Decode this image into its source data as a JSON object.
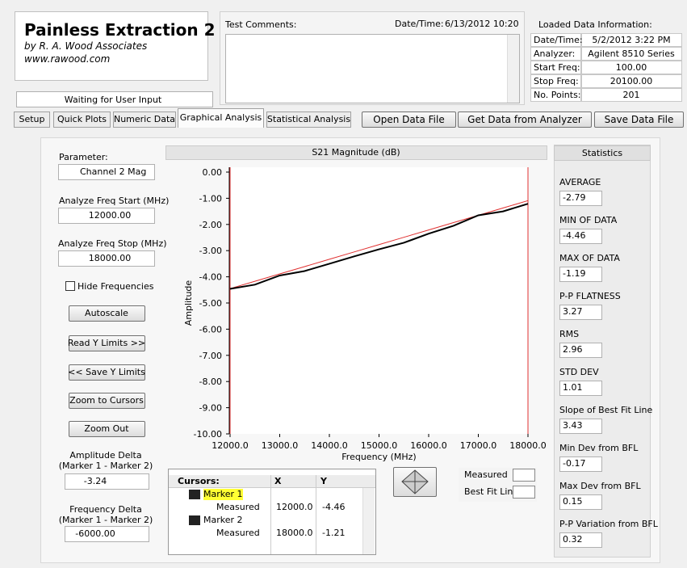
{
  "app": {
    "title": "Painless Extraction 2",
    "author": "by R. A. Wood Associates",
    "url": "www.rawood.com",
    "status": "Waiting for User Input"
  },
  "comments": {
    "label": "Test Comments:",
    "datetime_label": "Date/Time:",
    "datetime": "6/13/2012  10:20"
  },
  "loaded_data": {
    "title": "Loaded Data Information:",
    "rows": [
      [
        "Date/Time:",
        "5/2/2012 3:22 PM"
      ],
      [
        "Analyzer:",
        "Agilent 8510 Series"
      ],
      [
        "Start Freq:",
        "100.00"
      ],
      [
        "Stop Freq:",
        "20100.00"
      ],
      [
        "No. Points:",
        "201"
      ]
    ]
  },
  "tabs": [
    "Setup",
    "Quick Plots",
    "Numeric Data",
    "Graphical Analysis",
    "Statistical Analysis"
  ],
  "actions": [
    "Open Data File",
    "Get Data from Analyzer",
    "Save Data File"
  ],
  "controls": {
    "parameter_label": "Parameter:",
    "parameter": "Channel 2 Mag",
    "start_label": "Analyze Freq Start (MHz)",
    "start": "12000.00",
    "stop_label": "Analyze Freq Stop (MHz)",
    "stop": "18000.00",
    "hide": "Hide Frequencies",
    "buttons": [
      "Autoscale",
      "Read Y Limits >>",
      "<< Save Y Limits",
      "Zoom to Cursors",
      "Zoom Out"
    ],
    "amp_delta_label": [
      "Amplitude Delta",
      "(Marker 1 - Marker 2)"
    ],
    "amp_delta": "-3.24",
    "freq_delta_label": [
      "Frequency Delta",
      "(Marker 1 - Marker 2)"
    ],
    "freq_delta": "-6000.00"
  },
  "chart_data": {
    "type": "line",
    "title": "S21 Magnitude (dB)",
    "x_label": "Frequency (MHz)",
    "y_label": "Amplitude",
    "x": [
      12000,
      12500,
      13000,
      13500,
      14000,
      14500,
      15000,
      15500,
      16000,
      16500,
      17000,
      17500,
      18000
    ],
    "series": [
      {
        "name": "Measured",
        "color": "#000000",
        "values": [
          -4.46,
          -4.3,
          -3.95,
          -3.78,
          -3.5,
          -3.22,
          -2.95,
          -2.7,
          -2.35,
          -2.05,
          -1.65,
          -1.5,
          -1.21
        ]
      },
      {
        "name": "Best Fit Line",
        "color": "#e03030",
        "values": [
          -4.45,
          -4.17,
          -3.89,
          -3.61,
          -3.33,
          -3.05,
          -2.77,
          -2.49,
          -2.21,
          -1.93,
          -1.65,
          -1.37,
          -1.09
        ]
      }
    ],
    "xlim": [
      12000,
      18000
    ],
    "ylim": [
      -10,
      0
    ],
    "xticks": [
      {
        "value": 12000,
        "label": "12000.0"
      },
      {
        "value": 13000,
        "label": "13000.0"
      },
      {
        "value": 14000,
        "label": "14000.0"
      },
      {
        "value": 15000,
        "label": "15000.0"
      },
      {
        "value": 16000,
        "label": "16000.0"
      },
      {
        "value": 17000,
        "label": "17000.0"
      },
      {
        "value": 18000,
        "label": "18000.0"
      }
    ],
    "yticks": [
      {
        "value": 0,
        "label": "0.00"
      },
      {
        "value": -1,
        "label": "-1.00"
      },
      {
        "value": -2,
        "label": "-2.00"
      },
      {
        "value": -3,
        "label": "-3.00"
      },
      {
        "value": -4,
        "label": "-4.00"
      },
      {
        "value": -5,
        "label": "-5.00"
      },
      {
        "value": -6,
        "label": "-6.00"
      },
      {
        "value": -7,
        "label": "-7.00"
      },
      {
        "value": -8,
        "label": "-8.00"
      },
      {
        "value": -9,
        "label": "-9.00"
      },
      {
        "value": -10,
        "label": "-10.00"
      }
    ],
    "grid": false
  },
  "cursors": {
    "headers": [
      "Cursors:",
      "X",
      "Y"
    ],
    "rows": [
      {
        "name": "Marker 1",
        "sub": "Measured",
        "x": "12000.0",
        "y": "-4.46"
      },
      {
        "name": "Marker 2",
        "sub": "Measured",
        "x": "18000.0",
        "y": "-1.21"
      }
    ]
  },
  "statistics": {
    "title": "Statistics",
    "items": [
      [
        "AVERAGE",
        "-2.79"
      ],
      [
        "MIN OF DATA",
        "-4.46"
      ],
      [
        "MAX OF DATA",
        "-1.19"
      ],
      [
        "P-P FLATNESS",
        "3.27"
      ],
      [
        "RMS",
        "2.96"
      ],
      [
        "STD DEV",
        "1.01"
      ],
      [
        "Slope of Best Fit Line",
        "3.43"
      ],
      [
        "Min Dev from BFL",
        "-0.17"
      ],
      [
        "Max Dev from BFL",
        "0.15"
      ],
      [
        "P-P Variation from BFL",
        "0.32"
      ]
    ]
  }
}
